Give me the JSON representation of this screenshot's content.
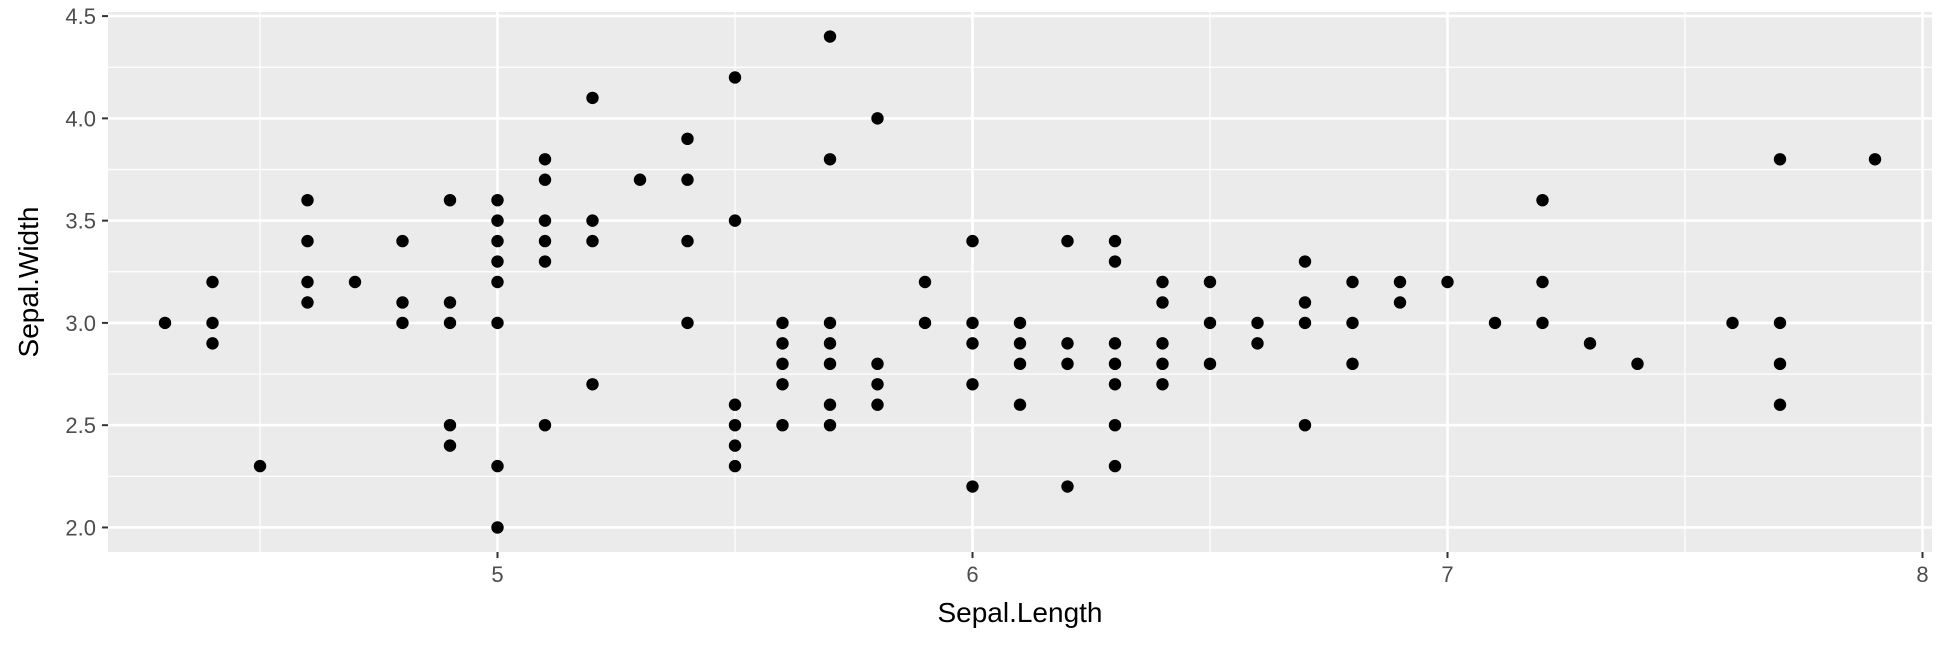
{
  "colors": {
    "panel_background": "#EBEBEB",
    "grid_major": "#FFFFFF",
    "point": "#000000",
    "tick_text": "#4D4D4D",
    "axis_title": "#000000"
  },
  "chart_data": {
    "type": "scatter",
    "xlabel": "Sepal.Length",
    "ylabel": "Sepal.Width",
    "xlim": [
      4.18,
      8.02
    ],
    "ylim": [
      1.88,
      4.52
    ],
    "x_ticks": [
      5,
      6,
      7,
      8
    ],
    "x_tick_labels": [
      "5",
      "6",
      "7",
      "8"
    ],
    "y_ticks": [
      2.0,
      2.5,
      3.0,
      3.5,
      4.0,
      4.5
    ],
    "y_tick_labels": [
      "2.0",
      "2.5",
      "3.0",
      "3.5",
      "4.0",
      "4.5"
    ],
    "grid": true,
    "points": [
      [
        4.3,
        3.0
      ],
      [
        4.4,
        2.9
      ],
      [
        4.4,
        3.0
      ],
      [
        4.4,
        3.2
      ],
      [
        4.5,
        2.3
      ],
      [
        4.6,
        3.1
      ],
      [
        4.6,
        3.2
      ],
      [
        4.6,
        3.4
      ],
      [
        4.6,
        3.6
      ],
      [
        4.7,
        3.2
      ],
      [
        4.8,
        3.0
      ],
      [
        4.8,
        3.1
      ],
      [
        4.8,
        3.4
      ],
      [
        4.9,
        2.4
      ],
      [
        4.9,
        2.5
      ],
      [
        4.9,
        3.0
      ],
      [
        4.9,
        3.1
      ],
      [
        4.9,
        3.6
      ],
      [
        5.0,
        2.0
      ],
      [
        5.0,
        2.3
      ],
      [
        5.0,
        3.0
      ],
      [
        5.0,
        3.2
      ],
      [
        5.0,
        3.3
      ],
      [
        5.0,
        3.4
      ],
      [
        5.0,
        3.5
      ],
      [
        5.0,
        3.6
      ],
      [
        5.1,
        2.5
      ],
      [
        5.1,
        3.3
      ],
      [
        5.1,
        3.4
      ],
      [
        5.1,
        3.5
      ],
      [
        5.1,
        3.7
      ],
      [
        5.1,
        3.8
      ],
      [
        5.2,
        2.7
      ],
      [
        5.2,
        3.4
      ],
      [
        5.2,
        3.5
      ],
      [
        5.2,
        4.1
      ],
      [
        5.3,
        3.7
      ],
      [
        5.4,
        3.0
      ],
      [
        5.4,
        3.4
      ],
      [
        5.4,
        3.7
      ],
      [
        5.4,
        3.9
      ],
      [
        5.5,
        2.3
      ],
      [
        5.5,
        2.4
      ],
      [
        5.5,
        2.5
      ],
      [
        5.5,
        2.6
      ],
      [
        5.5,
        3.5
      ],
      [
        5.5,
        4.2
      ],
      [
        5.6,
        2.5
      ],
      [
        5.6,
        2.7
      ],
      [
        5.6,
        2.8
      ],
      [
        5.6,
        2.9
      ],
      [
        5.6,
        3.0
      ],
      [
        5.7,
        2.5
      ],
      [
        5.7,
        2.6
      ],
      [
        5.7,
        2.8
      ],
      [
        5.7,
        2.9
      ],
      [
        5.7,
        3.0
      ],
      [
        5.7,
        3.8
      ],
      [
        5.7,
        4.4
      ],
      [
        5.8,
        2.6
      ],
      [
        5.8,
        2.7
      ],
      [
        5.8,
        2.8
      ],
      [
        5.8,
        4.0
      ],
      [
        5.9,
        3.0
      ],
      [
        5.9,
        3.2
      ],
      [
        6.0,
        2.2
      ],
      [
        6.0,
        2.7
      ],
      [
        6.0,
        2.9
      ],
      [
        6.0,
        3.0
      ],
      [
        6.0,
        3.4
      ],
      [
        6.1,
        2.6
      ],
      [
        6.1,
        2.8
      ],
      [
        6.1,
        2.9
      ],
      [
        6.1,
        3.0
      ],
      [
        6.2,
        2.2
      ],
      [
        6.2,
        2.8
      ],
      [
        6.2,
        2.9
      ],
      [
        6.2,
        3.4
      ],
      [
        6.3,
        2.3
      ],
      [
        6.3,
        2.5
      ],
      [
        6.3,
        2.7
      ],
      [
        6.3,
        2.8
      ],
      [
        6.3,
        2.9
      ],
      [
        6.3,
        3.3
      ],
      [
        6.3,
        3.4
      ],
      [
        6.4,
        2.7
      ],
      [
        6.4,
        2.8
      ],
      [
        6.4,
        2.9
      ],
      [
        6.4,
        3.1
      ],
      [
        6.4,
        3.2
      ],
      [
        6.5,
        2.8
      ],
      [
        6.5,
        3.0
      ],
      [
        6.5,
        3.2
      ],
      [
        6.6,
        2.9
      ],
      [
        6.6,
        3.0
      ],
      [
        6.7,
        2.5
      ],
      [
        6.7,
        3.0
      ],
      [
        6.7,
        3.1
      ],
      [
        6.7,
        3.3
      ],
      [
        6.8,
        2.8
      ],
      [
        6.8,
        3.0
      ],
      [
        6.8,
        3.2
      ],
      [
        6.9,
        3.1
      ],
      [
        6.9,
        3.2
      ],
      [
        7.0,
        3.2
      ],
      [
        7.1,
        3.0
      ],
      [
        7.2,
        3.0
      ],
      [
        7.2,
        3.2
      ],
      [
        7.2,
        3.6
      ],
      [
        7.3,
        2.9
      ],
      [
        7.4,
        2.8
      ],
      [
        7.6,
        3.0
      ],
      [
        7.7,
        2.6
      ],
      [
        7.7,
        2.8
      ],
      [
        7.7,
        3.0
      ],
      [
        7.7,
        3.8
      ],
      [
        7.9,
        3.8
      ]
    ]
  }
}
